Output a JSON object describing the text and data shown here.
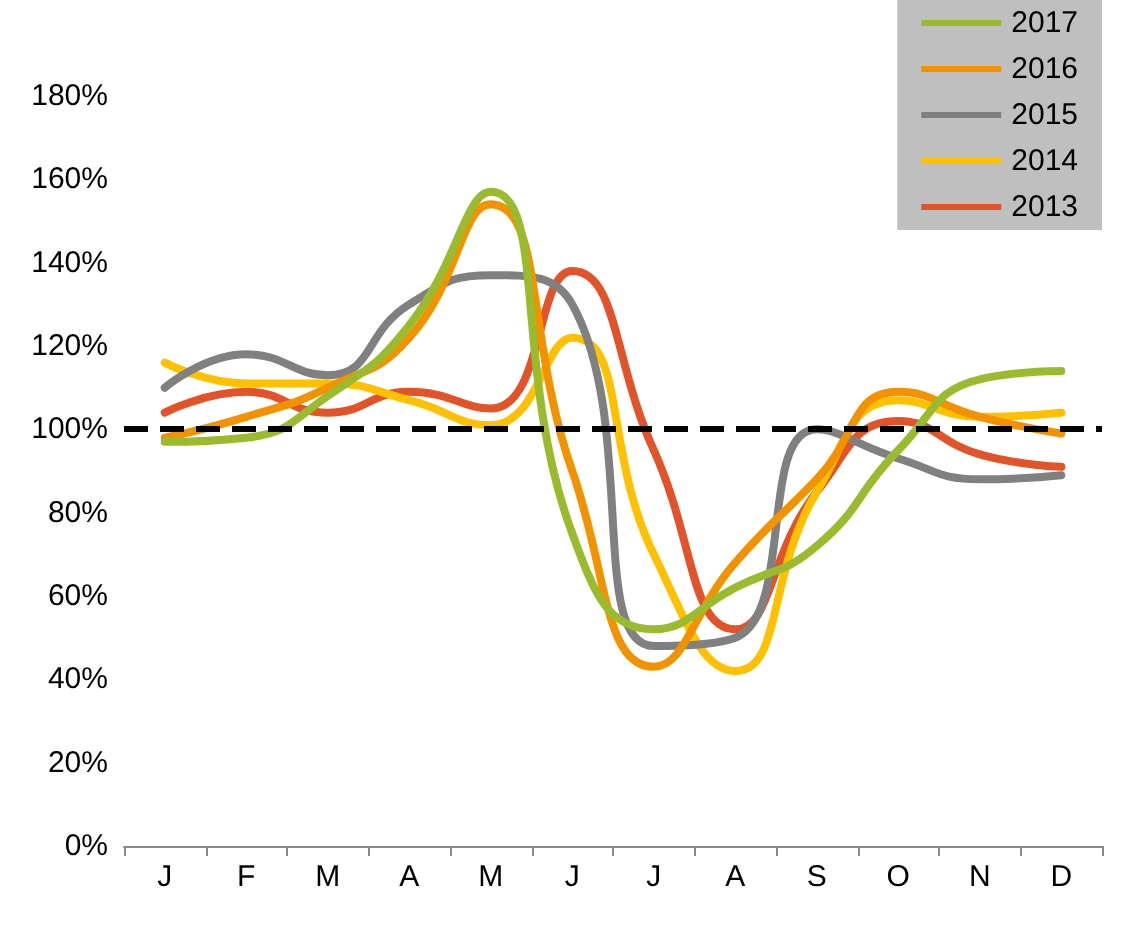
{
  "chart_data": {
    "type": "line",
    "categories": [
      "J",
      "F",
      "M",
      "A",
      "M",
      "J",
      "J",
      "A",
      "S",
      "O",
      "N",
      "D"
    ],
    "series": [
      {
        "name": "2017",
        "color": "#9bbb2f",
        "values": [
          97,
          98,
          108,
          125,
          157,
          75,
          52,
          62,
          72,
          95,
          112,
          114
        ]
      },
      {
        "name": "2016",
        "color": "#f39200",
        "values": [
          98,
          103,
          110,
          122,
          154,
          90,
          43,
          68,
          88,
          109,
          103,
          99
        ]
      },
      {
        "name": "2015",
        "color": "#808080",
        "values": [
          110,
          118,
          113,
          130,
          137,
          130,
          48,
          50,
          100,
          93,
          88,
          89
        ]
      },
      {
        "name": "2014",
        "color": "#ffc000",
        "values": [
          116,
          111,
          111,
          107,
          101,
          122,
          70,
          42,
          85,
          107,
          103,
          104
        ]
      },
      {
        "name": "2013",
        "color": "#e2532a",
        "values": [
          104,
          109,
          104,
          109,
          105,
          138,
          95,
          52,
          85,
          102,
          94,
          91
        ]
      }
    ],
    "ylim": [
      0,
      180
    ],
    "yticks": [
      {
        "value": 0,
        "label": "0%"
      },
      {
        "value": 20,
        "label": "20%"
      },
      {
        "value": 40,
        "label": "40%"
      },
      {
        "value": 60,
        "label": "60%"
      },
      {
        "value": 80,
        "label": "80%"
      },
      {
        "value": 100,
        "label": "100%"
      },
      {
        "value": 120,
        "label": "120%"
      },
      {
        "value": 140,
        "label": "140%"
      },
      {
        "value": 160,
        "label": "160%"
      },
      {
        "value": 180,
        "label": "180%"
      }
    ],
    "ref_lines": [
      {
        "axis": "y",
        "value": 100,
        "label": null,
        "color": "#000000",
        "line_style": "dashed"
      }
    ],
    "grid": false,
    "legend": "top right",
    "marker": "none",
    "line_style": "solid"
  }
}
